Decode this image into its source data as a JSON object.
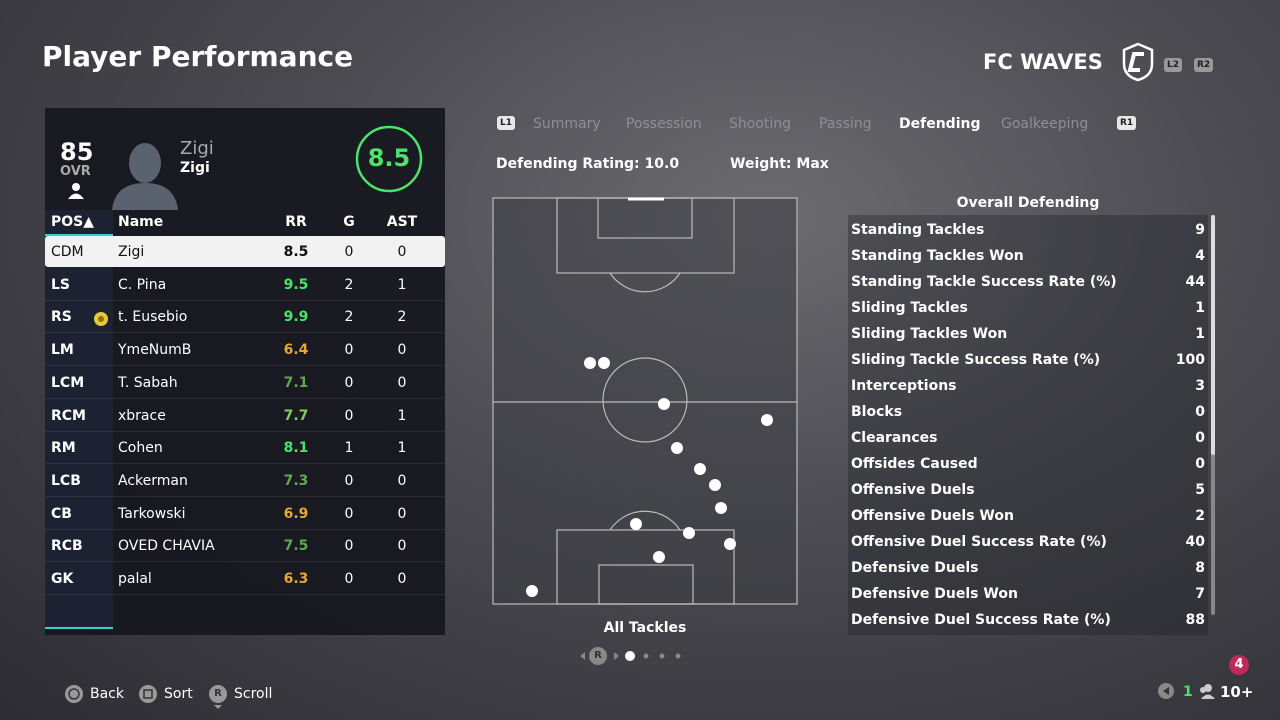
{
  "header": {
    "title": "Player Performance",
    "team": "FC WAVES",
    "buttons": [
      "L2",
      "R2"
    ]
  },
  "player_card": {
    "ovr": "85",
    "ovr_label": "OVR",
    "name": "Zigi",
    "gamertag": "Zigi",
    "rating": "8.5"
  },
  "table": {
    "columns": [
      "POS▲",
      "Name",
      "RR",
      "G",
      "AST"
    ],
    "rows": [
      [
        "CDM",
        "Zigi",
        "8.5",
        "0",
        "0"
      ],
      [
        "LS",
        "C. Pina",
        "9.5",
        "2",
        "1"
      ],
      [
        "RS",
        "t. Eusebio",
        "9.9",
        "2",
        "2"
      ],
      [
        "LM",
        "YmeNumB",
        "6.4",
        "0",
        "0"
      ],
      [
        "LCM",
        "T. Sabah",
        "7.1",
        "0",
        "0"
      ],
      [
        "RCM",
        "xbrace",
        "7.7",
        "0",
        "1"
      ],
      [
        "RM",
        "Cohen",
        "8.1",
        "1",
        "1"
      ],
      [
        "LCB",
        "Ackerman",
        "7.3",
        "0",
        "0"
      ],
      [
        "CB",
        "Tarkowski",
        "6.9",
        "0",
        "0"
      ],
      [
        "RCB",
        "OVED CHAVIA",
        "7.5",
        "0",
        "0"
      ],
      [
        "GK",
        "palal",
        "6.3",
        "0",
        "0"
      ]
    ],
    "rr_colors": [
      "#111111",
      "#4be36b",
      "#4be36b",
      "#e8a53a",
      "#5fa84f",
      "#7fcf5a",
      "#4be36b",
      "#5fa84f",
      "#e8a53a",
      "#5fa84f",
      "#e8a53a"
    ],
    "selected_row": 0
  },
  "tabs": {
    "left_button": "L1",
    "items": [
      "Summary",
      "Possession",
      "Shooting",
      "Passing",
      "Defending",
      "Goalkeeping"
    ],
    "active": 4,
    "right_button": "R1"
  },
  "summary": {
    "rating": "Defending Rating: 10.0",
    "weight": "Weight: Max"
  },
  "pitch": {
    "label": "All Tackles",
    "page_button": "R"
  },
  "stats": {
    "title": "Overall Defending",
    "rows": [
      [
        "Standing Tackles",
        "9"
      ],
      [
        "Standing Tackles Won",
        "4"
      ],
      [
        "Standing Tackle Success Rate (%)",
        "44"
      ],
      [
        "Sliding Tackles",
        "1"
      ],
      [
        "Sliding Tackles Won",
        "1"
      ],
      [
        "Sliding Tackle Success Rate (%)",
        "100"
      ],
      [
        "Interceptions",
        "3"
      ],
      [
        "Blocks",
        "0"
      ],
      [
        "Clearances",
        "0"
      ],
      [
        "Offsides Caused",
        "0"
      ],
      [
        "Offensive Duels",
        "5"
      ],
      [
        "Offensive Duels Won",
        "2"
      ],
      [
        "Offensive Duel Success Rate (%)",
        "40"
      ],
      [
        "Defensive Duels",
        "8"
      ],
      [
        "Defensive Duels Won",
        "7"
      ],
      [
        "Defensive Duel Success Rate (%)",
        "88"
      ]
    ]
  },
  "footer": {
    "back": "Back",
    "sort": "Sort",
    "scroll_button": "R",
    "scroll": "Scroll",
    "count": "1",
    "players": "10+",
    "notification": "4"
  }
}
